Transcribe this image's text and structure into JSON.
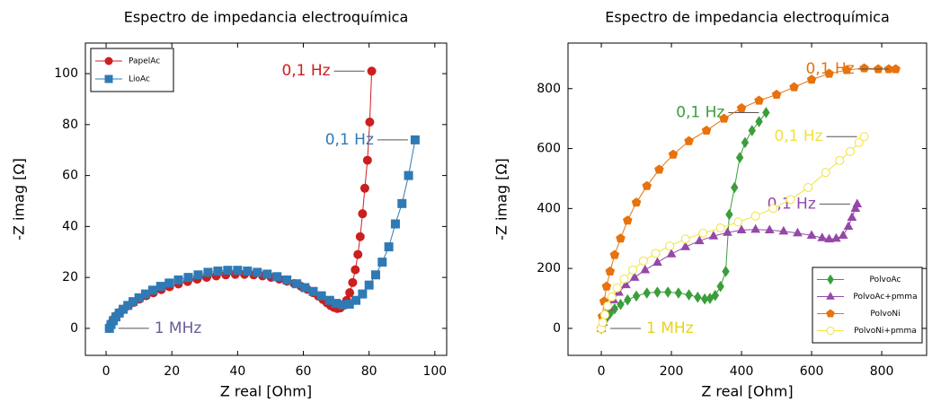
{
  "chart_data": [
    {
      "type": "line",
      "title": "Espectro de impedancia electroquímica",
      "xlabel": "Z real [Ohm]",
      "ylabel": "-Z imag [Ω]",
      "xlim": [
        -6.3,
        103.6
      ],
      "ylim": [
        -10.6,
        112
      ],
      "xticks": [
        0,
        20,
        40,
        60,
        80,
        100
      ],
      "yticks": [
        0,
        20,
        40,
        60,
        80,
        100
      ],
      "grid": false,
      "legend": "upper left",
      "start_label": {
        "text": "1 MHz",
        "color": "#6b5b95"
      },
      "series": [
        {
          "name": "PapelAc",
          "color": "#cc1f1f",
          "marker": "circle",
          "end_label": "0,1 Hz",
          "x": [
            1,
            1.3,
            1.8,
            2.4,
            3.2,
            4.2,
            5.4,
            6.8,
            8.4,
            10.2,
            12.2,
            14.4,
            16.8,
            19.3,
            22,
            24.8,
            27.7,
            30.6,
            33.5,
            36.4,
            39.3,
            42.1,
            44.9,
            47.6,
            50.2,
            52.7,
            55,
            57.2,
            59.3,
            61.2,
            63,
            64.6,
            66,
            67.2,
            68.3,
            69.3,
            70.3,
            71.2,
            72.2,
            73.2,
            74.1,
            75,
            75.8,
            76.6,
            77.3,
            78,
            78.7,
            79.5,
            80.2,
            80.8
          ],
          "values": [
            0,
            1.2,
            2.4,
            3.7,
            5,
            6.3,
            7.6,
            8.9,
            10.2,
            11.5,
            12.8,
            14,
            15.2,
            16.3,
            17.4,
            18.4,
            19.3,
            20,
            20.6,
            21,
            21.2,
            21.2,
            21,
            20.6,
            20,
            19.3,
            18.5,
            17.6,
            16.5,
            15.3,
            14,
            12.6,
            11.3,
            10,
            8.9,
            8.2,
            7.8,
            8,
            9,
            11,
            14,
            18,
            23,
            29,
            36,
            45,
            55,
            66,
            81,
            101
          ]
        },
        {
          "name": "LioAc",
          "color": "#2f7ab5",
          "marker": "square",
          "end_label": "0,1 Hz",
          "x": [
            1,
            1.5,
            2.2,
            3,
            4,
            5.2,
            6.6,
            8.2,
            10,
            12,
            14.2,
            16.6,
            19.2,
            22,
            25,
            28,
            31,
            34,
            37,
            40,
            43,
            46,
            49,
            52,
            55,
            58,
            60.5,
            63,
            65.5,
            68,
            70,
            72,
            74,
            76,
            78,
            80,
            82,
            84,
            86,
            88,
            90,
            92,
            94
          ],
          "values": [
            0,
            1.5,
            3,
            4.5,
            6,
            7.5,
            9,
            10.5,
            12,
            13.5,
            15,
            16.5,
            17.8,
            19,
            20,
            21,
            22,
            22.5,
            22.8,
            22.8,
            22.5,
            22,
            21.3,
            20.3,
            19,
            17.5,
            16,
            14.5,
            12.8,
            11,
            9.8,
            9.3,
            9.5,
            11,
            13.5,
            17,
            21,
            26,
            32,
            41,
            49,
            60,
            74
          ]
        }
      ]
    },
    {
      "type": "line",
      "title": "Espectro de impedancia electroquímica",
      "xlabel": "Z real [Ohm]",
      "ylabel": "-Z imag [Ω]",
      "xlim": [
        -95,
        928
      ],
      "ylim": [
        -90,
        952
      ],
      "xticks": [
        0,
        200,
        400,
        600,
        800
      ],
      "yticks": [
        0,
        200,
        400,
        600,
        800
      ],
      "grid": false,
      "legend": "lower right",
      "start_label": {
        "text": "1 MHz",
        "color": "#e6d21e"
      },
      "series": [
        {
          "name": "PolvoAc",
          "color": "#3a9e3a",
          "marker": "diamond",
          "end_label": "0,1 Hz",
          "x": [
            0,
            3,
            8,
            15,
            25,
            38,
            55,
            75,
            100,
            130,
            160,
            190,
            220,
            250,
            275,
            295,
            310,
            325,
            340,
            355,
            365,
            380,
            395,
            410,
            430,
            450,
            470
          ],
          "values": [
            0,
            10,
            22,
            35,
            50,
            65,
            80,
            95,
            108,
            118,
            121,
            121,
            118,
            112,
            104,
            98,
            100,
            110,
            140,
            190,
            380,
            470,
            570,
            620,
            660,
            690,
            720
          ]
        },
        {
          "name": "PolvoAc+pmma",
          "color": "#9448a8",
          "marker": "triangle",
          "end_label": "0,1 Hz",
          "x": [
            0,
            5,
            12,
            22,
            35,
            50,
            70,
            95,
            125,
            160,
            200,
            240,
            280,
            320,
            360,
            400,
            440,
            480,
            520,
            560,
            600,
            630,
            650,
            670,
            690,
            705,
            715,
            725,
            730
          ],
          "values": [
            0,
            20,
            45,
            70,
            95,
            120,
            145,
            170,
            195,
            220,
            248,
            272,
            292,
            308,
            320,
            328,
            330,
            328,
            324,
            318,
            310,
            302,
            298,
            300,
            310,
            340,
            370,
            400,
            415
          ]
        },
        {
          "name": "PolvoNi",
          "color": "#e8720c",
          "marker": "pentagon",
          "end_label": "0,1 Hz",
          "x": [
            0,
            3,
            8,
            15,
            25,
            38,
            55,
            75,
            100,
            130,
            165,
            205,
            250,
            300,
            350,
            400,
            450,
            500,
            550,
            600,
            650,
            700,
            750,
            790,
            820,
            840
          ],
          "values": [
            0,
            40,
            90,
            140,
            190,
            245,
            300,
            360,
            420,
            475,
            530,
            580,
            625,
            660,
            700,
            735,
            760,
            780,
            805,
            830,
            850,
            862,
            868,
            865,
            865,
            865
          ]
        },
        {
          "name": "PolvoNi+pmma",
          "color": "#f2e23c",
          "marker": "circle-open",
          "end_label": "0,1 Hz",
          "x": [
            0,
            4,
            10,
            18,
            30,
            45,
            65,
            90,
            120,
            155,
            195,
            240,
            290,
            340,
            390,
            440,
            490,
            540,
            590,
            640,
            680,
            710,
            735,
            750
          ],
          "values": [
            0,
            20,
            45,
            75,
            105,
            135,
            165,
            195,
            225,
            250,
            275,
            298,
            318,
            335,
            355,
            375,
            400,
            430,
            470,
            520,
            560,
            590,
            620,
            640
          ]
        }
      ]
    }
  ]
}
